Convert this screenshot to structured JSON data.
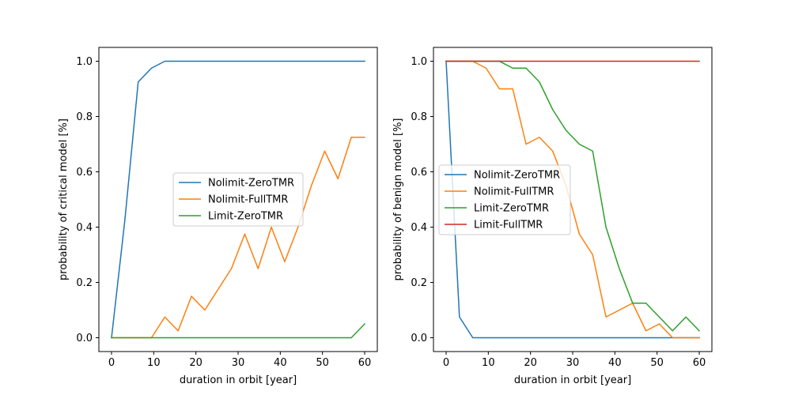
{
  "chart_data": [
    {
      "type": "line",
      "title": "",
      "xlabel": "duration in orbit [year]",
      "ylabel": "probability of critical model [%]",
      "xlim": [
        -3,
        63
      ],
      "ylim": [
        -0.05,
        1.05
      ],
      "xticks": [
        0,
        10,
        20,
        30,
        40,
        50,
        60
      ],
      "xtick_labels": [
        "0",
        "10",
        "20",
        "30",
        "40",
        "50",
        "60"
      ],
      "yticks": [
        0.0,
        0.2,
        0.4,
        0.6,
        0.8,
        1.0
      ],
      "ytick_labels": [
        "0.0",
        "0.2",
        "0.4",
        "0.6",
        "0.8",
        "1.0"
      ],
      "grid": false,
      "legend_placement": "center",
      "x": [
        0,
        3.16,
        6.32,
        9.47,
        12.63,
        15.79,
        18.95,
        22.11,
        25.26,
        28.42,
        31.58,
        34.74,
        37.89,
        41.05,
        44.21,
        47.37,
        50.53,
        53.68,
        56.84,
        60
      ],
      "series": [
        {
          "name": "Nolimit-ZeroTMR",
          "color": "#1f77b4",
          "values": [
            0.0,
            0.425,
            0.925,
            0.975,
            1.0,
            1.0,
            1.0,
            1.0,
            1.0,
            1.0,
            1.0,
            1.0,
            1.0,
            1.0,
            1.0,
            1.0,
            1.0,
            1.0,
            1.0,
            1.0
          ]
        },
        {
          "name": "Nolimit-FullTMR",
          "color": "#ff7f0e",
          "values": [
            0.0,
            0.0,
            0.0,
            0.0,
            0.075,
            0.025,
            0.15,
            0.1,
            0.175,
            0.25,
            0.375,
            0.25,
            0.4,
            0.275,
            0.4,
            0.55,
            0.675,
            0.575,
            0.725,
            0.725
          ]
        },
        {
          "name": "Limit-ZeroTMR",
          "color": "#2ca02c",
          "values": [
            0.0,
            0.0,
            0.0,
            0.0,
            0.0,
            0.0,
            0.0,
            0.0,
            0.0,
            0.0,
            0.0,
            0.0,
            0.0,
            0.0,
            0.0,
            0.0,
            0.0,
            0.0,
            0.0,
            0.05
          ]
        }
      ]
    },
    {
      "type": "line",
      "title": "",
      "xlabel": "duration in orbit [year]",
      "ylabel": "probability of benign model [%]",
      "xlim": [
        -3,
        63
      ],
      "ylim": [
        -0.05,
        1.05
      ],
      "xticks": [
        0,
        10,
        20,
        30,
        40,
        50,
        60
      ],
      "xtick_labels": [
        "0",
        "10",
        "20",
        "30",
        "40",
        "50",
        "60"
      ],
      "yticks": [
        0.0,
        0.2,
        0.4,
        0.6,
        0.8,
        1.0
      ],
      "ytick_labels": [
        "0.0",
        "0.2",
        "0.4",
        "0.6",
        "0.8",
        "1.0"
      ],
      "grid": false,
      "legend_placement": "center-left",
      "x": [
        0,
        3.16,
        6.32,
        9.47,
        12.63,
        15.79,
        18.95,
        22.11,
        25.26,
        28.42,
        31.58,
        34.74,
        37.89,
        41.05,
        44.21,
        47.37,
        50.53,
        53.68,
        56.84,
        60
      ],
      "series": [
        {
          "name": "Nolimit-ZeroTMR",
          "color": "#1f77b4",
          "values": [
            1.0,
            0.075,
            0.0,
            0.0,
            0.0,
            0.0,
            0.0,
            0.0,
            0.0,
            0.0,
            0.0,
            0.0,
            0.0,
            0.0,
            0.0,
            0.0,
            0.0,
            0.0,
            0.0,
            0.0
          ]
        },
        {
          "name": "Nolimit-FullTMR",
          "color": "#ff7f0e",
          "values": [
            1.0,
            1.0,
            1.0,
            0.975,
            0.9,
            0.9,
            0.7,
            0.725,
            0.675,
            0.55,
            0.375,
            0.3,
            0.075,
            0.1,
            0.125,
            0.025,
            0.05,
            0.0,
            0.0,
            0.0
          ]
        },
        {
          "name": "Limit-ZeroTMR",
          "color": "#2ca02c",
          "values": [
            1.0,
            1.0,
            1.0,
            1.0,
            1.0,
            0.975,
            0.975,
            0.925,
            0.825,
            0.75,
            0.7,
            0.675,
            0.4,
            0.25,
            0.125,
            0.125,
            0.075,
            0.025,
            0.075,
            0.025
          ]
        },
        {
          "name": "Limit-FullTMR",
          "color": "#d62728",
          "values": [
            1.0,
            1.0,
            1.0,
            1.0,
            1.0,
            1.0,
            1.0,
            1.0,
            1.0,
            1.0,
            1.0,
            1.0,
            1.0,
            1.0,
            1.0,
            1.0,
            1.0,
            1.0,
            1.0,
            1.0
          ]
        }
      ]
    }
  ]
}
